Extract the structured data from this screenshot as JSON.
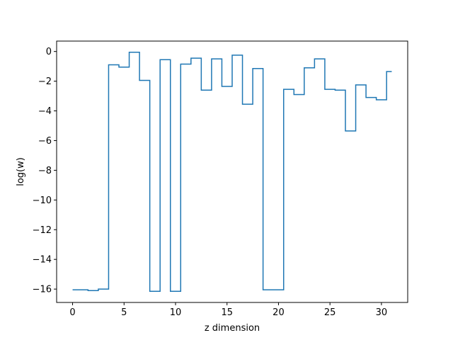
{
  "chart_data": {
    "type": "line",
    "drawstyle": "steps-mid",
    "title": "",
    "xlabel": "z dimension",
    "ylabel": "log(w)",
    "xlim": [
      -1.55,
      32.55
    ],
    "ylim": [
      -16.9,
      0.7
    ],
    "grid": false,
    "xticks": [
      0,
      5,
      10,
      15,
      20,
      25,
      30
    ],
    "xtick_labels": [
      "0",
      "5",
      "10",
      "15",
      "20",
      "25",
      "30"
    ],
    "yticks": [
      0,
      -2,
      -4,
      -6,
      -8,
      -10,
      -12,
      -14,
      -16
    ],
    "ytick_labels": [
      "0",
      "−2",
      "−4",
      "−6",
      "−8",
      "−10",
      "−12",
      "−14",
      "−16"
    ],
    "series": [
      {
        "color": "#1f77b4",
        "x": [
          0,
          1,
          2,
          3,
          4,
          5,
          6,
          7,
          8,
          9,
          10,
          11,
          12,
          13,
          14,
          15,
          16,
          17,
          18,
          19,
          20,
          21,
          22,
          23,
          24,
          25,
          26,
          27,
          28,
          29,
          30,
          31
        ],
        "y": [
          -16.05,
          -16.05,
          -16.1,
          -16.0,
          -0.9,
          -1.05,
          -0.05,
          -1.95,
          -16.15,
          -0.55,
          -16.15,
          -0.85,
          -0.45,
          -2.6,
          -0.5,
          -2.35,
          -0.25,
          -3.55,
          -1.15,
          -16.05,
          -16.05,
          -2.55,
          -2.9,
          -1.1,
          -0.5,
          -2.55,
          -2.6,
          -5.35,
          -2.25,
          -3.1,
          -3.25,
          -1.35
        ]
      }
    ]
  }
}
